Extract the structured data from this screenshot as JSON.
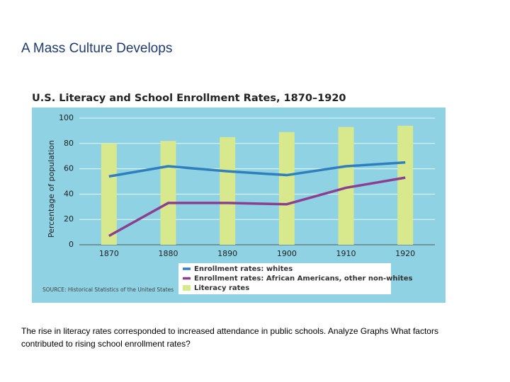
{
  "slide": {
    "title": "A Mass Culture Develops",
    "caption": "The rise in literacy rates corresponded to increased attendance in public schools. Analyze Graphs What factors contributed to rising school enrollment rates?"
  },
  "chart_data": {
    "type": "bar",
    "title": "U.S. Literacy and School Enrollment Rates, 1870–1920",
    "y_label": "Percentage of population",
    "source": "SOURCE: Historical Statistics of the United States",
    "categories": [
      "1870",
      "1880",
      "1890",
      "1900",
      "1910",
      "1920"
    ],
    "series": [
      {
        "name": "Enrollment rates: whites",
        "type": "line",
        "color": "#2f7fbf",
        "values": [
          54,
          62,
          58,
          55,
          62,
          65
        ]
      },
      {
        "name": "Enrollment rates: African Americans, other non-whites",
        "type": "line",
        "color": "#8b3f90",
        "values": [
          7,
          33,
          33,
          32,
          45,
          53
        ]
      },
      {
        "name": "Literacy rates",
        "type": "bar",
        "color": "#d8e88c",
        "values": [
          80,
          82,
          85,
          89,
          93,
          94
        ]
      }
    ],
    "ylim": [
      0,
      100
    ],
    "yticks": [
      0,
      20,
      40,
      60,
      80,
      100
    ],
    "grid": true
  }
}
